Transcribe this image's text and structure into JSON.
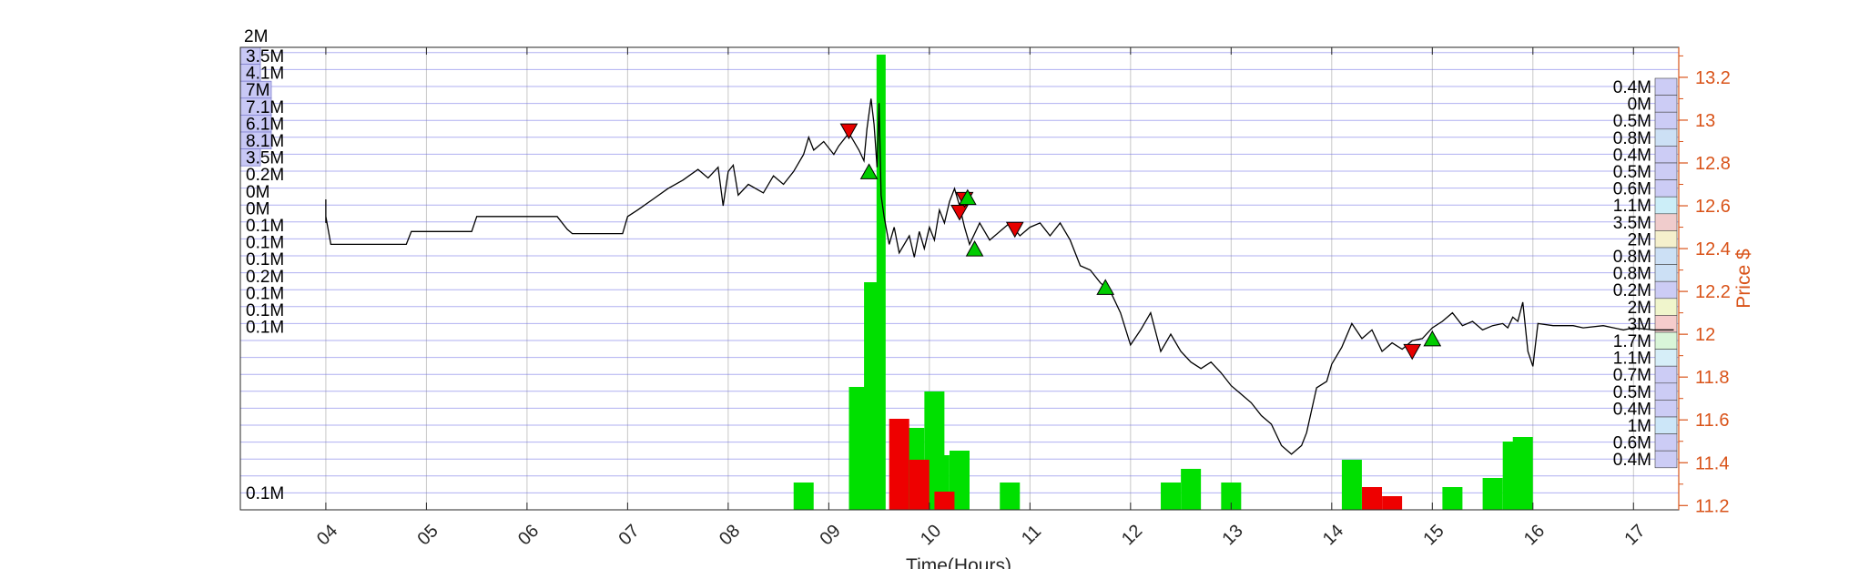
{
  "chart_data": {
    "type": "line",
    "xlabel": "Time(Hours)",
    "ylabel_right": "Price $",
    "x_ticks": [
      "04",
      "05",
      "06",
      "07",
      "08",
      "09",
      "10",
      "11",
      "12",
      "13",
      "14",
      "15",
      "16",
      "17"
    ],
    "x_range_hours": [
      3.15,
      17.45
    ],
    "y_right_ticks": [
      11.2,
      11.4,
      11.6,
      11.8,
      12,
      12.2,
      12.4,
      12.6,
      12.8,
      13,
      13.2
    ],
    "y_right_tick_labels": [
      "11.2",
      "11.4",
      "11.6",
      "11.8",
      "12",
      "12.2",
      "12.4",
      "12.6",
      "12.8",
      "13",
      "13.2"
    ],
    "y_right_range": [
      11.18,
      13.34
    ],
    "grid": true,
    "left_top_label": "2M",
    "left_volume_labels": [
      "3.5M",
      "4.1M",
      "7M",
      "7.1M",
      "6.1M",
      "8.1M",
      "3.5M",
      "0.2M",
      "0M",
      "0M",
      "0.1M",
      "0.1M",
      "0.1M",
      "0.2M",
      "0.1M",
      "0.1M",
      "0.1M"
    ],
    "left_volume_bar_fractions": [
      1.0,
      1.0,
      1.0,
      1.0,
      1.0,
      1.0,
      1.0,
      0,
      0,
      0,
      0,
      0,
      0,
      0,
      0,
      0,
      0
    ],
    "left_bottom_label": "0.1M",
    "right_volume_labels": [
      "0.4M",
      "0M",
      "0.5M",
      "0.8M",
      "0.4M",
      "0.5M",
      "0.6M",
      "1.1M",
      "3.5M",
      "2M",
      "0.8M",
      "0.8M",
      "0.2M",
      "2M",
      "3M",
      "1.7M",
      "1.1M",
      "0.7M",
      "0.5M",
      "0.4M",
      "1M",
      "0.6M",
      "0.4M"
    ],
    "right_volume_colors": [
      "#ccccf5",
      "#ccccf5",
      "#ccccf5",
      "#cce0f5",
      "#ccccf5",
      "#ccccf5",
      "#ccccf5",
      "#cceef8",
      "#f0cccc",
      "#f5f0cc",
      "#cce0f5",
      "#cce0f5",
      "#ccccf5",
      "#f0f5cc",
      "#f5cccc",
      "#d9f5d9",
      "#d6eef8",
      "#ccccf5",
      "#ccccf5",
      "#ccccf5",
      "#cce6f8",
      "#ccccf5",
      "#ccccf5"
    ],
    "price_series": {
      "name": "Price",
      "color": "#000000",
      "points": [
        [
          4.0,
          12.52
        ],
        [
          4.0,
          12.63
        ],
        [
          4.0,
          12.55
        ],
        [
          4.05,
          12.42
        ],
        [
          4.8,
          12.42
        ],
        [
          4.85,
          12.48
        ],
        [
          5.45,
          12.48
        ],
        [
          5.5,
          12.55
        ],
        [
          6.3,
          12.55
        ],
        [
          6.4,
          12.49
        ],
        [
          6.45,
          12.47
        ],
        [
          6.95,
          12.47
        ],
        [
          7.0,
          12.55
        ],
        [
          7.1,
          12.58
        ],
        [
          7.25,
          12.63
        ],
        [
          7.4,
          12.68
        ],
        [
          7.55,
          12.72
        ],
        [
          7.7,
          12.77
        ],
        [
          7.8,
          12.73
        ],
        [
          7.9,
          12.78
        ],
        [
          7.95,
          12.6
        ],
        [
          8.0,
          12.76
        ],
        [
          8.05,
          12.79
        ],
        [
          8.1,
          12.65
        ],
        [
          8.2,
          12.7
        ],
        [
          8.35,
          12.66
        ],
        [
          8.45,
          12.74
        ],
        [
          8.55,
          12.7
        ],
        [
          8.65,
          12.76
        ],
        [
          8.75,
          12.84
        ],
        [
          8.8,
          12.92
        ],
        [
          8.85,
          12.86
        ],
        [
          8.95,
          12.9
        ],
        [
          9.05,
          12.84
        ],
        [
          9.1,
          12.88
        ],
        [
          9.2,
          12.94
        ],
        [
          9.3,
          12.86
        ],
        [
          9.35,
          12.81
        ],
        [
          9.38,
          12.96
        ],
        [
          9.42,
          13.1
        ],
        [
          9.45,
          12.98
        ],
        [
          9.48,
          12.78
        ],
        [
          9.5,
          13.08
        ],
        [
          9.52,
          12.65
        ],
        [
          9.55,
          12.55
        ],
        [
          9.6,
          12.42
        ],
        [
          9.65,
          12.5
        ],
        [
          9.7,
          12.38
        ],
        [
          9.8,
          12.46
        ],
        [
          9.85,
          12.36
        ],
        [
          9.9,
          12.48
        ],
        [
          9.95,
          12.4
        ],
        [
          10.0,
          12.5
        ],
        [
          10.05,
          12.44
        ],
        [
          10.1,
          12.58
        ],
        [
          10.15,
          12.52
        ],
        [
          10.2,
          12.62
        ],
        [
          10.25,
          12.68
        ],
        [
          10.3,
          12.6
        ],
        [
          10.35,
          12.5
        ],
        [
          10.4,
          12.42
        ],
        [
          10.5,
          12.52
        ],
        [
          10.6,
          12.44
        ],
        [
          10.7,
          12.48
        ],
        [
          10.8,
          12.52
        ],
        [
          10.9,
          12.46
        ],
        [
          11.0,
          12.5
        ],
        [
          11.1,
          12.52
        ],
        [
          11.2,
          12.46
        ],
        [
          11.3,
          12.52
        ],
        [
          11.4,
          12.44
        ],
        [
          11.5,
          12.32
        ],
        [
          11.6,
          12.3
        ],
        [
          11.7,
          12.24
        ],
        [
          11.8,
          12.2
        ],
        [
          11.9,
          12.1
        ],
        [
          12.0,
          11.95
        ],
        [
          12.1,
          12.02
        ],
        [
          12.2,
          12.1
        ],
        [
          12.3,
          11.92
        ],
        [
          12.4,
          12.0
        ],
        [
          12.5,
          11.92
        ],
        [
          12.6,
          11.87
        ],
        [
          12.7,
          11.84
        ],
        [
          12.8,
          11.87
        ],
        [
          12.9,
          11.82
        ],
        [
          13.0,
          11.76
        ],
        [
          13.1,
          11.72
        ],
        [
          13.2,
          11.68
        ],
        [
          13.3,
          11.62
        ],
        [
          13.4,
          11.58
        ],
        [
          13.5,
          11.48
        ],
        [
          13.6,
          11.44
        ],
        [
          13.7,
          11.48
        ],
        [
          13.75,
          11.54
        ],
        [
          13.85,
          11.75
        ],
        [
          13.95,
          11.78
        ],
        [
          14.0,
          11.86
        ],
        [
          14.1,
          11.94
        ],
        [
          14.2,
          12.05
        ],
        [
          14.3,
          11.98
        ],
        [
          14.4,
          12.02
        ],
        [
          14.5,
          11.92
        ],
        [
          14.6,
          11.96
        ],
        [
          14.7,
          11.93
        ],
        [
          14.8,
          11.97
        ],
        [
          14.9,
          11.98
        ],
        [
          15.0,
          12.03
        ],
        [
          15.1,
          12.06
        ],
        [
          15.2,
          12.1
        ],
        [
          15.3,
          12.04
        ],
        [
          15.4,
          12.06
        ],
        [
          15.5,
          12.02
        ],
        [
          15.6,
          12.04
        ],
        [
          15.7,
          12.05
        ],
        [
          15.75,
          12.03
        ],
        [
          15.8,
          12.08
        ],
        [
          15.85,
          12.06
        ],
        [
          15.9,
          12.15
        ],
        [
          15.95,
          11.92
        ],
        [
          16.0,
          11.85
        ],
        [
          16.05,
          12.05
        ],
        [
          16.2,
          12.04
        ],
        [
          16.4,
          12.04
        ],
        [
          16.5,
          12.03
        ],
        [
          16.7,
          12.04
        ],
        [
          16.9,
          12.02
        ],
        [
          17.0,
          12.03
        ],
        [
          17.2,
          12.02
        ],
        [
          17.4,
          12.02
        ]
      ]
    },
    "volume_bars": {
      "green": [
        [
          8.75,
          0.06
        ],
        [
          9.3,
          0.27
        ],
        [
          9.45,
          0.5
        ],
        [
          9.52,
          1.0
        ],
        [
          9.85,
          0.18
        ],
        [
          10.05,
          0.26
        ],
        [
          10.1,
          0.12
        ],
        [
          10.3,
          0.13
        ],
        [
          10.8,
          0.06
        ],
        [
          12.4,
          0.06
        ],
        [
          12.6,
          0.09
        ],
        [
          13.0,
          0.06
        ],
        [
          14.2,
          0.11
        ],
        [
          15.2,
          0.05
        ],
        [
          15.6,
          0.07
        ],
        [
          15.8,
          0.15
        ],
        [
          15.9,
          0.16
        ]
      ],
      "red": [
        [
          9.7,
          0.2
        ],
        [
          9.9,
          0.11
        ],
        [
          10.15,
          0.04
        ],
        [
          14.4,
          0.05
        ],
        [
          14.6,
          0.03
        ]
      ]
    },
    "sell_markers": [
      [
        9.2,
        12.94
      ],
      [
        10.3,
        12.56
      ],
      [
        10.35,
        12.62
      ],
      [
        10.85,
        12.48
      ],
      [
        14.8,
        11.91
      ]
    ],
    "buy_markers": [
      [
        9.4,
        12.76
      ],
      [
        10.38,
        12.64
      ],
      [
        10.45,
        12.4
      ],
      [
        11.75,
        12.22
      ],
      [
        15.0,
        11.98
      ]
    ],
    "colors": {
      "grid_major": "#6f6fe6",
      "grid_minor": "#a6a6ee",
      "grid_vertical": "#c8c8c8",
      "right_axis": "#D95319",
      "volume_up": "#00e000",
      "volume_down": "#ee0000",
      "sell_marker": "#e60000",
      "buy_marker": "#00cc00",
      "left_bar": "#c8c8f5"
    }
  }
}
